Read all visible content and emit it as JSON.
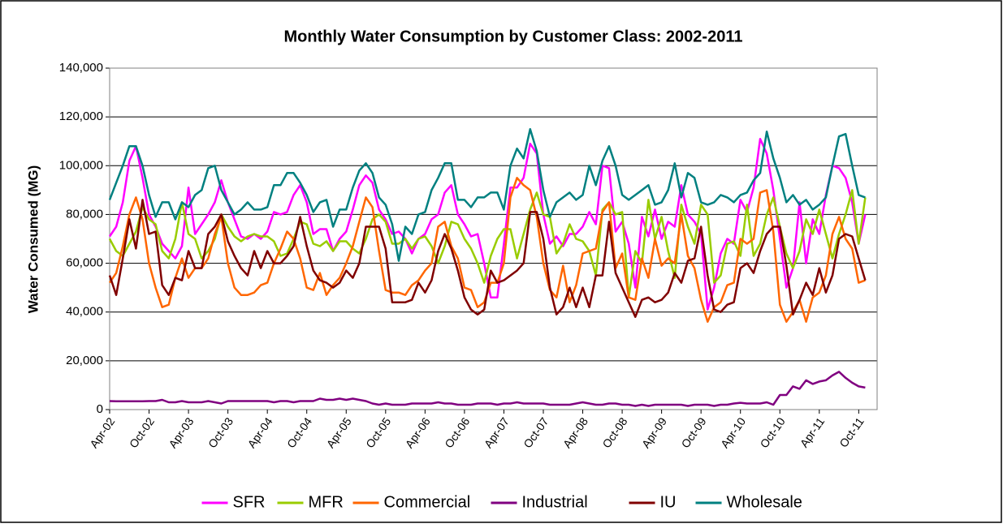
{
  "chart_data": {
    "type": "line",
    "title": "Monthly Water Consumption by Customer Class: 2002-2011",
    "y_label": "Water Consumed (MG)",
    "categories": [
      "Apr-02",
      null,
      null,
      null,
      null,
      null,
      "Oct-02",
      null,
      null,
      null,
      null,
      null,
      "Apr-03",
      null,
      null,
      null,
      null,
      null,
      "Oct-03",
      null,
      null,
      null,
      null,
      null,
      "Apr-04",
      null,
      null,
      null,
      null,
      null,
      "Oct-04",
      null,
      null,
      null,
      null,
      null,
      "Apr-05",
      null,
      null,
      null,
      null,
      null,
      "Oct-05",
      null,
      null,
      null,
      null,
      null,
      "Apr-06",
      null,
      null,
      null,
      null,
      null,
      "Oct-06",
      null,
      null,
      null,
      null,
      null,
      "Apr-07",
      null,
      null,
      null,
      null,
      null,
      "Oct-07",
      null,
      null,
      null,
      null,
      null,
      "Apr-08",
      null,
      null,
      null,
      null,
      null,
      "Oct-08",
      null,
      null,
      null,
      null,
      null,
      "Apr-09",
      null,
      null,
      null,
      null,
      null,
      "Oct-09",
      null,
      null,
      null,
      null,
      null,
      "Apr-10",
      null,
      null,
      null,
      null,
      null,
      "Oct-10",
      null,
      null,
      null,
      null,
      null,
      "Apr-11",
      null,
      null,
      null,
      null,
      null,
      "Oct-11",
      null
    ],
    "ylim": [
      0,
      140000
    ],
    "yticks": [
      0,
      {
        "value": 20000,
        "label": "20,000"
      },
      {
        "value": 40000,
        "label": "40,000"
      },
      {
        "value": 60000,
        "label": "60,000"
      },
      {
        "value": 80000,
        "label": "80,000"
      },
      {
        "value": 100000,
        "label": "100,000"
      },
      {
        "value": 120000,
        "label": "120,000"
      },
      {
        "value": 140000,
        "label": "140,000"
      }
    ],
    "grid": true,
    "legend": "bottom",
    "series": [
      {
        "name": "SFR",
        "color": "#ff00ff",
        "values": [
          71000,
          75000,
          85000,
          102000,
          108000,
          95000,
          80000,
          75000,
          68000,
          65000,
          62000,
          67000,
          91000,
          72000,
          76000,
          80000,
          85000,
          94000,
          85000,
          78000,
          71000,
          70000,
          72000,
          70000,
          73000,
          81000,
          80000,
          81000,
          88000,
          92000,
          85000,
          72000,
          74000,
          74000,
          65000,
          70000,
          73000,
          82000,
          92000,
          96000,
          93000,
          82000,
          78000,
          72000,
          73000,
          70000,
          64000,
          70000,
          72000,
          78000,
          80000,
          89000,
          92000,
          80000,
          76000,
          71000,
          72000,
          60000,
          46000,
          46000,
          68000,
          91000,
          91000,
          95000,
          109000,
          105000,
          80000,
          68000,
          71000,
          67000,
          72000,
          72000,
          75000,
          81000,
          76000,
          100000,
          99000,
          73000,
          77000,
          68000,
          50000,
          79000,
          71000,
          82000,
          70000,
          77000,
          75000,
          92000,
          80000,
          77000,
          72000,
          41000,
          50000,
          64000,
          70000,
          68000,
          86000,
          81000,
          91000,
          111000,
          105000,
          90000,
          70000,
          50000,
          58000,
          85000,
          60000,
          78000,
          72000,
          88000,
          100000,
          99000,
          95000,
          85000,
          68000,
          80000
        ]
      },
      {
        "name": "MFR",
        "color": "#99cc00",
        "values": [
          70000,
          65000,
          63000,
          68000,
          73000,
          83000,
          78000,
          76000,
          65000,
          62000,
          70000,
          85000,
          72000,
          70000,
          62000,
          65000,
          70000,
          80000,
          75000,
          71000,
          69000,
          71000,
          72000,
          71000,
          71000,
          69000,
          63000,
          64000,
          70000,
          77000,
          76000,
          68000,
          67000,
          69000,
          65000,
          69000,
          69000,
          66000,
          64000,
          70000,
          78000,
          80000,
          77000,
          68000,
          68000,
          70000,
          66000,
          70000,
          71000,
          67000,
          60000,
          67000,
          77000,
          76000,
          70000,
          66000,
          60000,
          52000,
          63000,
          70000,
          74000,
          74000,
          62000,
          72000,
          82000,
          89000,
          80000,
          79000,
          64000,
          68000,
          76000,
          70000,
          69000,
          65000,
          55000,
          82000,
          85000,
          80000,
          81000,
          46000,
          65000,
          60000,
          86000,
          70000,
          79000,
          65000,
          54000,
          84000,
          75000,
          68000,
          84000,
          80000,
          52000,
          55000,
          68000,
          69000,
          63000,
          84000,
          63000,
          68000,
          80000,
          87000,
          75000,
          64000,
          58000,
          65000,
          78000,
          72000,
          82000,
          72000,
          62000,
          72000,
          80000,
          90000,
          68000,
          87000
        ]
      },
      {
        "name": "Commercial",
        "color": "#ff6600",
        "values": [
          52000,
          56000,
          67000,
          80000,
          87000,
          78000,
          60000,
          50000,
          42000,
          43000,
          54000,
          62000,
          54000,
          58000,
          58000,
          62000,
          72000,
          79000,
          60000,
          50000,
          47000,
          47000,
          48000,
          51000,
          52000,
          60000,
          66000,
          73000,
          70000,
          62000,
          50000,
          49000,
          56000,
          47000,
          51000,
          54000,
          60000,
          67000,
          77000,
          87000,
          83000,
          65000,
          49000,
          48000,
          48000,
          47000,
          51000,
          53000,
          57000,
          60000,
          75000,
          77000,
          67000,
          62000,
          50000,
          49000,
          42000,
          44000,
          52000,
          52000,
          60000,
          87000,
          95000,
          92000,
          90000,
          79000,
          60000,
          49000,
          46000,
          59000,
          44000,
          51000,
          64000,
          65000,
          66000,
          81000,
          85000,
          58000,
          64000,
          46000,
          45000,
          62000,
          54000,
          70000,
          59000,
          62000,
          60000,
          80000,
          63000,
          58000,
          45000,
          36000,
          42000,
          44000,
          51000,
          52000,
          70000,
          68000,
          70000,
          89000,
          90000,
          73000,
          43000,
          36000,
          40000,
          45000,
          36000,
          46000,
          48000,
          55000,
          72000,
          79000,
          70000,
          66000,
          52000,
          53000
        ]
      },
      {
        "name": "Industrial",
        "color": "#800080",
        "values": [
          3500,
          3400,
          3400,
          3400,
          3400,
          3400,
          3500,
          3500,
          4000,
          3000,
          3000,
          3500,
          3000,
          3000,
          3000,
          3500,
          3000,
          2500,
          3500,
          3500,
          3500,
          3500,
          3500,
          3500,
          3500,
          3000,
          3500,
          3500,
          3000,
          3500,
          3500,
          3500,
          4500,
          4000,
          4000,
          4500,
          4000,
          4500,
          4000,
          3500,
          2500,
          2000,
          2500,
          2000,
          2000,
          2000,
          2500,
          2500,
          2500,
          2500,
          3000,
          2500,
          2500,
          2000,
          2000,
          2000,
          2500,
          2500,
          2500,
          2000,
          2500,
          2500,
          3000,
          2500,
          2500,
          2500,
          2500,
          2000,
          2000,
          2000,
          2000,
          2500,
          3000,
          2500,
          2000,
          2000,
          2500,
          2500,
          2000,
          2000,
          1500,
          2000,
          1500,
          2000,
          2000,
          2000,
          2000,
          2000,
          1500,
          2000,
          2000,
          2000,
          1500,
          2000,
          2000,
          2500,
          2800,
          2500,
          2500,
          2500,
          3000,
          2000,
          6000,
          6000,
          9500,
          8500,
          12000,
          10500,
          11500,
          12000,
          14000,
          15500,
          13000,
          11000,
          9500,
          9000
        ]
      },
      {
        "name": "IU",
        "color": "#800000",
        "values": [
          55000,
          47000,
          62000,
          78000,
          66000,
          86000,
          72000,
          73000,
          51000,
          47000,
          54000,
          53000,
          65000,
          58000,
          58000,
          72000,
          75000,
          80000,
          69000,
          63000,
          58000,
          55000,
          65000,
          58000,
          65000,
          60000,
          60000,
          63000,
          67000,
          79000,
          67000,
          57000,
          53000,
          52000,
          50000,
          52000,
          57000,
          54000,
          60000,
          75000,
          75000,
          75000,
          66000,
          44000,
          44000,
          44000,
          45000,
          52000,
          48000,
          53000,
          65000,
          72000,
          66000,
          57000,
          46000,
          41000,
          39000,
          41000,
          57000,
          52000,
          53000,
          55000,
          57000,
          60000,
          81000,
          81000,
          70000,
          50000,
          39000,
          42000,
          50000,
          42000,
          50000,
          42000,
          55000,
          55000,
          77000,
          56000,
          50000,
          44000,
          38000,
          45000,
          46000,
          44000,
          45000,
          48000,
          56000,
          52000,
          61000,
          62000,
          75000,
          55000,
          41000,
          40000,
          43000,
          44000,
          58000,
          60000,
          56000,
          65000,
          72000,
          75000,
          75000,
          59000,
          39000,
          45000,
          52000,
          47000,
          58000,
          48000,
          55000,
          70000,
          72000,
          71000,
          62000,
          53000
        ]
      },
      {
        "name": "Wholesale",
        "color": "#008080",
        "values": [
          86000,
          93000,
          100000,
          108000,
          108000,
          100000,
          88000,
          79000,
          85000,
          85000,
          78000,
          85000,
          83000,
          88000,
          90000,
          99000,
          100000,
          90000,
          85000,
          80000,
          82000,
          85000,
          82000,
          82000,
          83000,
          92000,
          92000,
          97000,
          97000,
          93000,
          88000,
          81000,
          85000,
          86000,
          75000,
          82000,
          82000,
          91000,
          98000,
          101000,
          97000,
          87000,
          84000,
          76000,
          61000,
          75000,
          72000,
          80000,
          81000,
          90000,
          95000,
          101000,
          101000,
          86000,
          86000,
          83000,
          87000,
          87000,
          89000,
          89000,
          82000,
          100000,
          107000,
          103000,
          115000,
          106000,
          90000,
          79000,
          85000,
          87000,
          89000,
          86000,
          88000,
          100000,
          92000,
          102000,
          108000,
          100000,
          88000,
          86000,
          88000,
          90000,
          92000,
          84000,
          85000,
          90000,
          101000,
          87000,
          97000,
          95000,
          85000,
          84000,
          85000,
          88000,
          87000,
          85000,
          88000,
          89000,
          94000,
          97000,
          114000,
          103000,
          95000,
          85000,
          88000,
          84000,
          86000,
          82000,
          84000,
          87000,
          100000,
          112000,
          113000,
          100000,
          88000,
          87000
        ]
      }
    ]
  }
}
